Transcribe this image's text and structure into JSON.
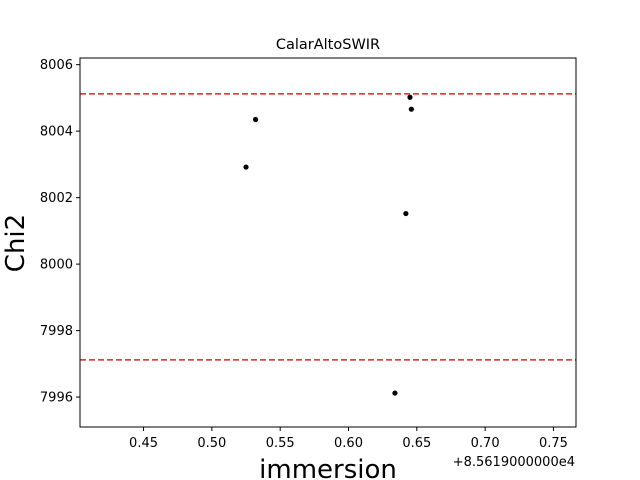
{
  "chart_data": {
    "type": "scatter",
    "title": "CalarAltoSWIR",
    "xlabel": "immersion",
    "ylabel": "Chi2",
    "x_offset_label": "+8.5619000000e4",
    "xlim": [
      0.4035,
      0.7665
    ],
    "ylim": [
      7995.1,
      8006.2
    ],
    "x_ticks": [
      0.45,
      0.5,
      0.55,
      0.6,
      0.65,
      0.7,
      0.75
    ],
    "x_tick_labels": [
      "0.45",
      "0.50",
      "0.55",
      "0.60",
      "0.65",
      "0.70",
      "0.75"
    ],
    "y_ticks": [
      7996,
      7998,
      8000,
      8002,
      8004,
      8006
    ],
    "y_tick_labels": [
      "7996",
      "7998",
      "8000",
      "8002",
      "8004",
      "8006"
    ],
    "grid": false,
    "points": {
      "x": [
        0.532,
        0.525,
        0.645,
        0.646,
        0.642,
        0.634
      ],
      "y": [
        8004.35,
        8002.92,
        8005.02,
        8004.66,
        8001.52,
        7996.12
      ],
      "color": "#000000"
    },
    "reference_lines": [
      {
        "y": 8005.12,
        "color": "#d62728",
        "style": "dashed"
      },
      {
        "y": 7997.12,
        "color": "#d62728",
        "style": "dashed"
      }
    ]
  }
}
